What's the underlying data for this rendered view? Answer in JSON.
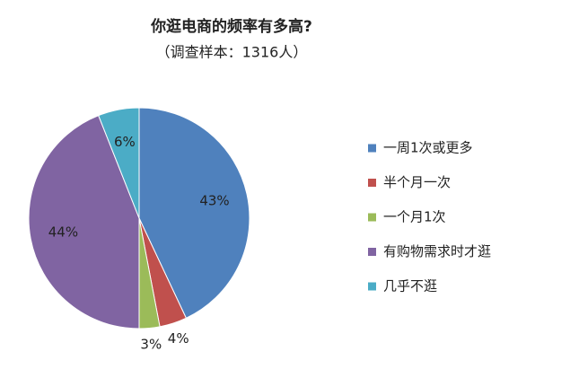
{
  "chart_data": {
    "type": "pie",
    "title": "你逛电商的频率有多高?",
    "subtitle": "（调查样本：1316人）",
    "categories": [
      "一周1次或更多",
      "半个月一次",
      "一个月1次",
      "有购物需求时才逛",
      "几乎不逛"
    ],
    "values": [
      43,
      4,
      3,
      44,
      6
    ],
    "value_labels": [
      "43%",
      "4%",
      "3%",
      "44%",
      "6%"
    ],
    "colors": [
      "#4f81bd",
      "#c0504d",
      "#9bbb59",
      "#8064a2",
      "#4bacc6"
    ],
    "legend": "right"
  }
}
